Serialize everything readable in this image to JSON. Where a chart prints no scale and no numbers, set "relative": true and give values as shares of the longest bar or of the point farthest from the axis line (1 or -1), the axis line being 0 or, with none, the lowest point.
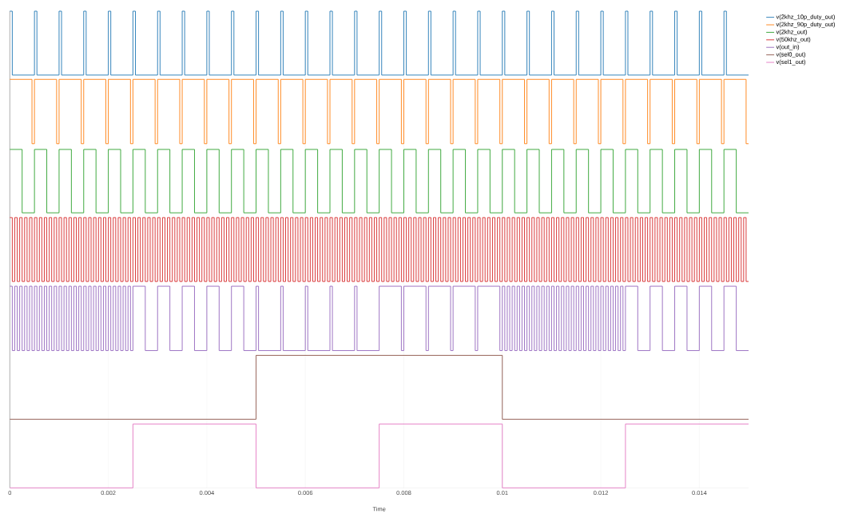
{
  "chart_data": {
    "type": "step",
    "relative": true,
    "xlabel": "Time",
    "xlim": [
      0,
      0.015
    ],
    "xticks": [
      0,
      0.002,
      0.004,
      0.006,
      0.008,
      0.01,
      0.012,
      0.014
    ],
    "grid": "x",
    "legend": "top right",
    "tick_labels": "x",
    "series": [
      {
        "name": "v(2khz_10p_duty_out)",
        "color": "#1f77b4",
        "x": [
          0,
          5e-05,
          0.0005,
          0.00055,
          0.001,
          0.00105,
          0.0015,
          0.00155,
          0.002,
          0.00205,
          0.0025,
          0.00255,
          0.003,
          0.00305,
          0.0035,
          0.00355,
          0.004,
          0.00405,
          0.0045,
          0.00455,
          0.005,
          0.00505,
          0.0055,
          0.00555,
          0.006,
          0.00605,
          0.0065,
          0.00655,
          0.007,
          0.00705,
          0.0075,
          0.00755,
          0.008,
          0.00805,
          0.0085,
          0.00855,
          0.009,
          0.00905,
          0.0095,
          0.00955,
          0.01,
          0.01005,
          0.0105,
          0.01055,
          0.011,
          0.01105,
          0.0115,
          0.01155,
          0.012,
          0.01205,
          0.0125,
          0.01255,
          0.013,
          0.01305,
          0.0135,
          0.01355,
          0.014,
          0.01405,
          0.0145,
          0.01455,
          0.015
        ],
        "values": [
          1,
          0.866,
          1,
          0.866,
          1,
          0.866,
          1,
          0.866,
          1,
          0.866,
          1,
          0.866,
          1,
          0.866,
          1,
          0.866,
          1,
          0.866,
          1,
          0.866,
          1,
          0.866,
          1,
          0.866,
          1,
          0.866,
          1,
          0.866,
          1,
          0.866,
          1,
          0.866,
          1,
          0.866,
          1,
          0.866,
          1,
          0.866,
          1,
          0.866,
          1,
          0.866,
          1,
          0.866,
          1,
          0.866,
          1,
          0.866,
          1,
          0.866,
          1,
          0.866,
          1,
          0.866,
          1,
          0.866,
          1,
          0.866,
          1,
          0.866,
          0.866
        ]
      },
      {
        "name": "v(2khz_90p_duty_out)",
        "color": "#ff7f0e",
        "x": [
          0,
          0.00045,
          0.0005,
          0.00095,
          0.001,
          0.00145,
          0.0015,
          0.00195,
          0.002,
          0.00245,
          0.0025,
          0.00295,
          0.003,
          0.00345,
          0.0035,
          0.00395,
          0.004,
          0.00445,
          0.0045,
          0.00495,
          0.005,
          0.00545,
          0.0055,
          0.00595,
          0.006,
          0.00645,
          0.0065,
          0.00695,
          0.007,
          0.00745,
          0.0075,
          0.00795,
          0.008,
          0.00845,
          0.0085,
          0.00895,
          0.009,
          0.00945,
          0.0095,
          0.00995,
          0.01,
          0.01045,
          0.0105,
          0.01095,
          0.011,
          0.01145,
          0.0115,
          0.01195,
          0.012,
          0.01245,
          0.0125,
          0.01295,
          0.013,
          0.01345,
          0.0135,
          0.01395,
          0.014,
          0.01445,
          0.0145,
          0.01495,
          0.015
        ],
        "values": [
          0.857,
          0.722,
          0.857,
          0.722,
          0.857,
          0.722,
          0.857,
          0.722,
          0.857,
          0.722,
          0.857,
          0.722,
          0.857,
          0.722,
          0.857,
          0.722,
          0.857,
          0.722,
          0.857,
          0.722,
          0.857,
          0.722,
          0.857,
          0.722,
          0.857,
          0.722,
          0.857,
          0.722,
          0.857,
          0.722,
          0.857,
          0.722,
          0.857,
          0.722,
          0.857,
          0.722,
          0.857,
          0.722,
          0.857,
          0.722,
          0.857,
          0.722,
          0.857,
          0.722,
          0.857,
          0.722,
          0.857,
          0.722,
          0.857,
          0.722,
          0.857,
          0.722,
          0.857,
          0.722,
          0.857,
          0.722,
          0.857,
          0.722,
          0.857,
          0.722,
          0.722
        ]
      },
      {
        "name": "v(2khz_out)",
        "color": "#2ca02c",
        "x": [
          0,
          0.00025,
          0.0005,
          0.00075,
          0.001,
          0.00125,
          0.0015,
          0.00175,
          0.002,
          0.00225,
          0.0025,
          0.00275,
          0.003,
          0.00325,
          0.0035,
          0.00375,
          0.004,
          0.00425,
          0.0045,
          0.00475,
          0.005,
          0.00525,
          0.0055,
          0.00575,
          0.006,
          0.00625,
          0.0065,
          0.00675,
          0.007,
          0.00725,
          0.0075,
          0.00775,
          0.008,
          0.00825,
          0.0085,
          0.00875,
          0.009,
          0.00925,
          0.0095,
          0.00975,
          0.01,
          0.01025,
          0.0105,
          0.01075,
          0.011,
          0.01125,
          0.0115,
          0.01175,
          0.012,
          0.01225,
          0.0125,
          0.01275,
          0.013,
          0.01325,
          0.0135,
          0.01375,
          0.014,
          0.01425,
          0.0145,
          0.01475,
          0.015
        ],
        "values": [
          0.71,
          0.577,
          0.71,
          0.577,
          0.71,
          0.577,
          0.71,
          0.577,
          0.71,
          0.577,
          0.71,
          0.577,
          0.71,
          0.577,
          0.71,
          0.577,
          0.71,
          0.577,
          0.71,
          0.577,
          0.71,
          0.577,
          0.71,
          0.577,
          0.71,
          0.577,
          0.71,
          0.577,
          0.71,
          0.577,
          0.71,
          0.577,
          0.71,
          0.577,
          0.71,
          0.577,
          0.71,
          0.577,
          0.71,
          0.577,
          0.71,
          0.577,
          0.71,
          0.577,
          0.71,
          0.577,
          0.71,
          0.577,
          0.71,
          0.577,
          0.71,
          0.577,
          0.71,
          0.577,
          0.71,
          0.577,
          0.71,
          0.577,
          0.71,
          0.577,
          0.577
        ]
      },
      {
        "name": "v(50khz_out)",
        "color": "#d62728",
        "x": [
          0,
          5e-05,
          0.0001,
          0.00015,
          0.0002,
          0.00025,
          0.0003,
          0.00035,
          0.0004,
          0.00045,
          0.0005,
          0.00055,
          0.0006,
          0.00065,
          0.0007,
          0.00075,
          0.0008,
          0.00085,
          0.0009,
          0.00095,
          0.001,
          0.00105,
          0.0011,
          0.00115,
          0.0012,
          0.00125,
          0.0013,
          0.00135,
          0.0014,
          0.00145,
          0.0015,
          0.00155,
          0.0016,
          0.00165,
          0.0017,
          0.00175,
          0.0018,
          0.00185,
          0.0019,
          0.00195,
          0.002,
          0.00205,
          0.0021,
          0.00215,
          0.0022,
          0.00225,
          0.0023,
          0.00235,
          0.0024,
          0.00245,
          0.0025,
          0.00255,
          0.0026,
          0.00265,
          0.0027,
          0.00275,
          0.0028,
          0.00285,
          0.0029,
          0.00295,
          0.003,
          0.00305,
          0.0031,
          0.00315,
          0.0032,
          0.00325,
          0.0033,
          0.00335,
          0.0034,
          0.00345,
          0.0035,
          0.00355,
          0.0036,
          0.00365,
          0.0037,
          0.00375,
          0.0038,
          0.00385,
          0.0039,
          0.00395,
          0.004,
          0.00405,
          0.0041,
          0.00415,
          0.0042,
          0.00425,
          0.0043,
          0.00435,
          0.0044,
          0.00445,
          0.0045,
          0.00455,
          0.0046,
          0.00465,
          0.0047,
          0.00475,
          0.0048,
          0.00485,
          0.0049,
          0.00495,
          0.005,
          0.00505,
          0.0051,
          0.00515,
          0.0052,
          0.00525,
          0.0053,
          0.00535,
          0.0054,
          0.00545,
          0.0055,
          0.00555,
          0.0056,
          0.00565,
          0.0057,
          0.00575,
          0.0058,
          0.00585,
          0.0059,
          0.00595,
          0.006,
          0.00605,
          0.0061,
          0.00615,
          0.0062,
          0.00625,
          0.0063,
          0.00635,
          0.0064,
          0.00645,
          0.0065,
          0.00655,
          0.0066,
          0.00665,
          0.0067,
          0.00675,
          0.0068,
          0.00685,
          0.0069,
          0.00695,
          0.007,
          0.00705,
          0.0071,
          0.00715,
          0.0072,
          0.00725,
          0.0073,
          0.00735,
          0.0074,
          0.00745,
          0.0075,
          0.00755,
          0.0076,
          0.00765,
          0.0077,
          0.00775,
          0.0078,
          0.00785,
          0.0079,
          0.00795,
          0.008,
          0.00805,
          0.0081,
          0.00815,
          0.0082,
          0.00825,
          0.0083,
          0.00835,
          0.0084,
          0.00845,
          0.0085,
          0.00855,
          0.0086,
          0.00865,
          0.0087,
          0.00875,
          0.0088,
          0.00885,
          0.0089,
          0.00895,
          0.009,
          0.00905,
          0.0091,
          0.00915,
          0.0092,
          0.00925,
          0.0093,
          0.00935,
          0.0094,
          0.00945,
          0.0095,
          0.00955,
          0.0096,
          0.00965,
          0.0097,
          0.00975,
          0.0098,
          0.00985,
          0.0099,
          0.00995,
          0.01,
          0.01005,
          0.0101,
          0.01015,
          0.0102,
          0.01025,
          0.0103,
          0.01035,
          0.0104,
          0.01045,
          0.0105,
          0.01055,
          0.0106,
          0.01065,
          0.0107,
          0.01075,
          0.0108,
          0.01085,
          0.0109,
          0.01095,
          0.011,
          0.01105,
          0.0111,
          0.01115,
          0.0112,
          0.01125,
          0.0113,
          0.01135,
          0.0114,
          0.01145,
          0.0115,
          0.01155,
          0.0116,
          0.01165,
          0.0117,
          0.01175,
          0.0118,
          0.01185,
          0.0119,
          0.01195,
          0.012,
          0.01205,
          0.0121,
          0.01215,
          0.0122,
          0.01225,
          0.0123,
          0.01235,
          0.0124,
          0.01245,
          0.0125,
          0.01255,
          0.0126,
          0.01265,
          0.0127,
          0.01275,
          0.0128,
          0.01285,
          0.0129,
          0.01295,
          0.013,
          0.01305,
          0.0131,
          0.01315,
          0.0132,
          0.01325,
          0.0133,
          0.01335,
          0.0134,
          0.01345,
          0.0135,
          0.01355,
          0.0136,
          0.01365,
          0.0137,
          0.01375,
          0.0138,
          0.01385,
          0.0139,
          0.01395,
          0.014,
          0.01405,
          0.0141,
          0.01415,
          0.0142,
          0.01425,
          0.0143,
          0.01435,
          0.0144,
          0.01445,
          0.0145,
          0.01455,
          0.0146,
          0.01465,
          0.0147,
          0.01475,
          0.0148,
          0.01485,
          0.0149,
          0.01495,
          0.015
        ],
        "values": [
          0.567,
          0.433,
          0.567,
          0.433,
          0.567,
          0.433,
          0.567,
          0.433,
          0.567,
          0.433,
          0.567,
          0.433,
          0.567,
          0.433,
          0.567,
          0.433,
          0.567,
          0.433,
          0.567,
          0.433,
          0.567,
          0.433,
          0.567,
          0.433,
          0.567,
          0.433,
          0.567,
          0.433,
          0.567,
          0.433,
          0.567,
          0.433,
          0.567,
          0.433,
          0.567,
          0.433,
          0.567,
          0.433,
          0.567,
          0.433,
          0.567,
          0.433,
          0.567,
          0.433,
          0.567,
          0.433,
          0.567,
          0.433,
          0.567,
          0.433,
          0.567,
          0.433,
          0.567,
          0.433,
          0.567,
          0.433,
          0.567,
          0.433,
          0.567,
          0.433,
          0.567,
          0.433,
          0.567,
          0.433,
          0.567,
          0.433,
          0.567,
          0.433,
          0.567,
          0.433,
          0.567,
          0.433,
          0.567,
          0.433,
          0.567,
          0.433,
          0.567,
          0.433,
          0.567,
          0.433,
          0.567,
          0.433,
          0.567,
          0.433,
          0.567,
          0.433,
          0.567,
          0.433,
          0.567,
          0.433,
          0.567,
          0.433,
          0.567,
          0.433,
          0.567,
          0.433,
          0.567,
          0.433,
          0.567,
          0.433,
          0.567,
          0.433,
          0.567,
          0.433,
          0.567,
          0.433,
          0.567,
          0.433,
          0.567,
          0.433,
          0.567,
          0.433,
          0.567,
          0.433,
          0.567,
          0.433,
          0.567,
          0.433,
          0.567,
          0.433,
          0.567,
          0.433,
          0.567,
          0.433,
          0.567,
          0.433,
          0.567,
          0.433,
          0.567,
          0.433,
          0.567,
          0.433,
          0.567,
          0.433,
          0.567,
          0.433,
          0.567,
          0.433,
          0.567,
          0.433,
          0.567,
          0.433,
          0.567,
          0.433,
          0.567,
          0.433,
          0.567,
          0.433,
          0.567,
          0.433,
          0.567,
          0.433,
          0.567,
          0.433,
          0.567,
          0.433,
          0.567,
          0.433,
          0.567,
          0.433,
          0.567,
          0.433,
          0.567,
          0.433,
          0.567,
          0.433,
          0.567,
          0.433,
          0.567,
          0.433,
          0.567,
          0.433,
          0.567,
          0.433,
          0.567,
          0.433,
          0.567,
          0.433,
          0.567,
          0.433,
          0.567,
          0.433,
          0.567,
          0.433,
          0.567,
          0.433,
          0.567,
          0.433,
          0.567,
          0.433,
          0.567,
          0.433,
          0.567,
          0.433,
          0.567,
          0.433,
          0.567,
          0.433,
          0.567,
          0.433,
          0.567,
          0.433,
          0.567,
          0.433,
          0.567,
          0.433,
          0.567,
          0.433,
          0.567,
          0.433,
          0.567,
          0.433,
          0.567,
          0.433,
          0.567,
          0.433,
          0.567,
          0.433,
          0.567,
          0.433,
          0.567,
          0.433,
          0.567,
          0.433,
          0.567,
          0.433,
          0.567,
          0.433,
          0.567,
          0.433,
          0.567,
          0.433,
          0.567,
          0.433,
          0.567,
          0.433,
          0.567,
          0.433,
          0.567,
          0.433,
          0.567,
          0.433,
          0.567,
          0.433,
          0.567,
          0.433,
          0.567,
          0.433,
          0.567,
          0.433,
          0.567,
          0.433,
          0.567,
          0.433,
          0.567,
          0.433,
          0.567,
          0.433,
          0.567,
          0.433,
          0.567,
          0.433,
          0.567,
          0.433,
          0.567,
          0.433,
          0.567,
          0.433,
          0.567,
          0.433,
          0.567,
          0.433,
          0.567,
          0.433,
          0.567,
          0.433,
          0.567,
          0.433,
          0.567,
          0.433,
          0.567,
          0.433,
          0.567,
          0.433,
          0.567,
          0.433,
          0.567,
          0.433,
          0.567,
          0.433,
          0.567,
          0.433,
          0.567,
          0.433,
          0.567,
          0.433,
          0.567,
          0.433,
          0.567,
          0.433,
          0.433
        ]
      },
      {
        "name": "v(out_in)",
        "color": "#9467bd",
        "x": [
          0,
          5e-05,
          0.0001,
          0.00015,
          0.0002,
          0.00025,
          0.0003,
          0.00035,
          0.0004,
          0.00045,
          0.0005,
          0.00055,
          0.0006,
          0.00065,
          0.0007,
          0.00075,
          0.0008,
          0.00085,
          0.0009,
          0.00095,
          0.001,
          0.00105,
          0.0011,
          0.00115,
          0.0012,
          0.00125,
          0.0013,
          0.00135,
          0.0014,
          0.00145,
          0.0015,
          0.00155,
          0.0016,
          0.00165,
          0.0017,
          0.00175,
          0.0018,
          0.00185,
          0.0019,
          0.00195,
          0.002,
          0.00205,
          0.0021,
          0.00215,
          0.0022,
          0.00225,
          0.0023,
          0.00235,
          0.0024,
          0.00245,
          0.0025,
          0.00275,
          0.003,
          0.00325,
          0.0035,
          0.00375,
          0.004,
          0.00425,
          0.0045,
          0.00475,
          0.005,
          0.00505,
          0.0055,
          0.00555,
          0.006,
          0.00605,
          0.0065,
          0.00655,
          0.007,
          0.00705,
          0.0075,
          0.00795,
          0.008,
          0.00845,
          0.0085,
          0.00895,
          0.009,
          0.00945,
          0.0095,
          0.00995,
          0.01,
          0.01005,
          0.0101,
          0.01015,
          0.0102,
          0.01025,
          0.0103,
          0.01035,
          0.0104,
          0.01045,
          0.0105,
          0.01055,
          0.0106,
          0.01065,
          0.0107,
          0.01075,
          0.0108,
          0.01085,
          0.0109,
          0.01095,
          0.011,
          0.01105,
          0.0111,
          0.01115,
          0.0112,
          0.01125,
          0.0113,
          0.01135,
          0.0114,
          0.01145,
          0.0115,
          0.01155,
          0.0116,
          0.01165,
          0.0117,
          0.01175,
          0.0118,
          0.01185,
          0.0119,
          0.01195,
          0.012,
          0.01205,
          0.0121,
          0.01215,
          0.0122,
          0.01225,
          0.0123,
          0.01235,
          0.0124,
          0.01245,
          0.0125,
          0.01275,
          0.013,
          0.01325,
          0.0135,
          0.01375,
          0.014,
          0.01425,
          0.0145,
          0.01475,
          0.015
        ],
        "values": [
          0.423,
          0.288,
          0.423,
          0.288,
          0.423,
          0.288,
          0.423,
          0.288,
          0.423,
          0.288,
          0.423,
          0.288,
          0.423,
          0.288,
          0.423,
          0.288,
          0.423,
          0.288,
          0.423,
          0.288,
          0.423,
          0.288,
          0.423,
          0.288,
          0.423,
          0.288,
          0.423,
          0.288,
          0.423,
          0.288,
          0.423,
          0.288,
          0.423,
          0.288,
          0.423,
          0.288,
          0.423,
          0.288,
          0.423,
          0.288,
          0.423,
          0.288,
          0.423,
          0.288,
          0.423,
          0.288,
          0.423,
          0.288,
          0.423,
          0.288,
          0.423,
          0.288,
          0.423,
          0.288,
          0.423,
          0.288,
          0.423,
          0.288,
          0.423,
          0.288,
          0.423,
          0.288,
          0.423,
          0.288,
          0.423,
          0.288,
          0.423,
          0.288,
          0.423,
          0.288,
          0.423,
          0.288,
          0.423,
          0.288,
          0.423,
          0.288,
          0.423,
          0.288,
          0.423,
          0.288,
          0.423,
          0.288,
          0.423,
          0.288,
          0.423,
          0.288,
          0.423,
          0.288,
          0.423,
          0.288,
          0.423,
          0.288,
          0.423,
          0.288,
          0.423,
          0.288,
          0.423,
          0.288,
          0.423,
          0.288,
          0.423,
          0.288,
          0.423,
          0.288,
          0.423,
          0.288,
          0.423,
          0.288,
          0.423,
          0.288,
          0.423,
          0.288,
          0.423,
          0.288,
          0.423,
          0.288,
          0.423,
          0.288,
          0.423,
          0.288,
          0.423,
          0.288,
          0.423,
          0.288,
          0.423,
          0.288,
          0.423,
          0.288,
          0.423,
          0.288,
          0.423,
          0.288,
          0.423,
          0.288,
          0.423,
          0.288,
          0.423,
          0.288,
          0.423,
          0.288,
          0.288
        ]
      },
      {
        "name": "v(sel0_out)",
        "color": "#8c564b",
        "x": [
          0,
          0.005,
          0.01,
          0.015
        ],
        "values": [
          0.144,
          0.278,
          0.144,
          0.144
        ]
      },
      {
        "name": "v(sel1_out)",
        "color": "#e377c2",
        "x": [
          0,
          0.0025,
          0.005,
          0.0075,
          0.01,
          0.0125,
          0.015
        ],
        "values": [
          0,
          0.134,
          0,
          0.134,
          0,
          0.134,
          0.134
        ]
      }
    ]
  }
}
